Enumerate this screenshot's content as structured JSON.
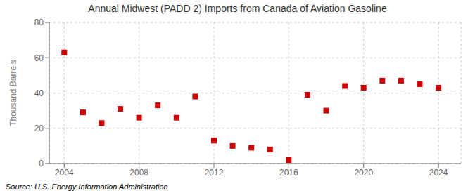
{
  "chart_data": {
    "type": "scatter",
    "title": "Annual Midwest (PADD 2) Imports from Canada of Aviation Gasoline",
    "ylabel": "Thousand Barrels",
    "annotation": "Source: U.S. Energy Information Administration",
    "x": [
      2004,
      2005,
      2006,
      2007,
      2008,
      2009,
      2010,
      2011,
      2012,
      2013,
      2014,
      2015,
      2016,
      2017,
      2018,
      2019,
      2020,
      2021,
      2022,
      2023,
      2024
    ],
    "values": [
      63,
      29,
      23,
      31,
      26,
      33,
      26,
      38,
      13,
      10,
      9,
      8,
      2,
      39,
      30,
      44,
      43,
      47,
      47,
      45,
      43
    ],
    "color": "#cc0000",
    "marker": "square",
    "xlim": [
      2003.2,
      2025.2
    ],
    "xticks": [
      2004,
      2008,
      2012,
      2016,
      2020,
      2024
    ],
    "ylim": [
      0,
      80
    ],
    "yticks": [
      0,
      20,
      40,
      60,
      80
    ],
    "grid": true
  }
}
